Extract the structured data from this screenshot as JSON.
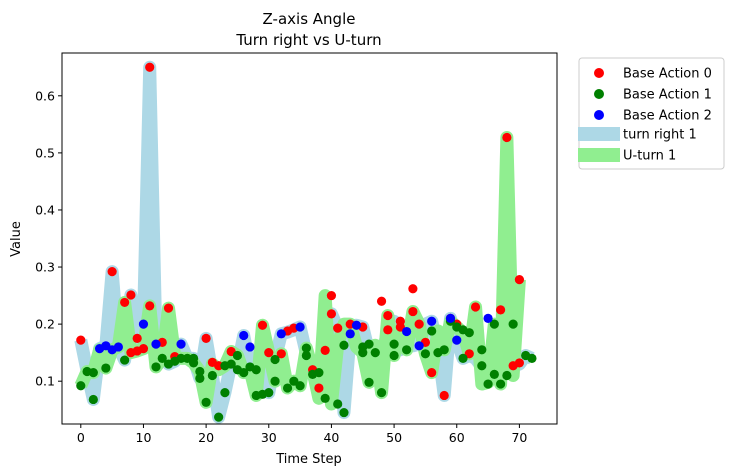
{
  "chart_data": {
    "type": "scatter",
    "title": "Z-axis Angle",
    "subtitle": "Turn right vs U-turn",
    "xlabel": "Time Step",
    "ylabel": "Value",
    "xlim": [
      -3,
      76
    ],
    "ylim": [
      0.025,
      0.675
    ],
    "x_ticks": [
      0,
      10,
      20,
      30,
      40,
      50,
      60,
      70
    ],
    "y_ticks": [
      0.1,
      0.2,
      0.3,
      0.4,
      0.5,
      0.6
    ],
    "y_tick_labels": [
      "0.1",
      "0.2",
      "0.3",
      "0.4",
      "0.5",
      "0.6"
    ],
    "grid": false,
    "legend_position": "outside-right-top",
    "colors": {
      "base_action_0": "#ff0000",
      "base_action_1": "#008000",
      "base_action_2": "#0000ff",
      "turn_right_band": "#add8e6",
      "uturn_band": "#90ee90"
    },
    "bands": [
      {
        "name": "turn right 1",
        "color": "#add8e6",
        "x": [
          0,
          1,
          2,
          3,
          4,
          5,
          6,
          7,
          8,
          9,
          10,
          11,
          12,
          13,
          14,
          15,
          16,
          17,
          18,
          19,
          20,
          21,
          22,
          23,
          24,
          25,
          26,
          27,
          28,
          29,
          30,
          31,
          32,
          33,
          34,
          35,
          36,
          37,
          38,
          39,
          40,
          41,
          42,
          43,
          44,
          45,
          46,
          47,
          48,
          49,
          50,
          51,
          52,
          53,
          54,
          55,
          56,
          57,
          58,
          59,
          60,
          61,
          62,
          63,
          64,
          65,
          66,
          67,
          68,
          69,
          70,
          71,
          72
        ],
        "y": [
          0.172,
          0.118,
          0.068,
          0.157,
          0.162,
          0.292,
          0.16,
          0.137,
          0.251,
          0.175,
          0.2,
          0.65,
          0.165,
          0.168,
          0.13,
          0.135,
          0.165,
          0.14,
          0.14,
          0.105,
          0.175,
          0.11,
          0.037,
          0.08,
          0.132,
          0.125,
          0.18,
          0.125,
          0.12,
          0.125,
          0.08,
          0.138,
          0.183,
          0.186,
          0.19,
          0.195,
          0.148,
          0.112,
          0.088,
          0.154,
          0.218,
          0.193,
          0.045,
          0.183,
          0.198,
          0.195,
          0.15,
          0.145,
          0.14,
          0.19,
          0.205,
          0.155,
          0.187,
          0.162,
          0.165,
          0.2,
          0.205,
          0.16,
          0.075,
          0.21,
          0.172,
          0.14,
          0.145,
          0.14,
          0.125,
          0.135,
          0.115,
          0.12,
          0.115,
          0.126,
          0.13,
          0.145,
          0.14
        ]
      },
      {
        "name": "U-turn 1",
        "color": "#90ee90",
        "x": [
          0,
          1,
          2,
          3,
          4,
          5,
          6,
          7,
          8,
          9,
          10,
          11,
          12,
          13,
          14,
          15,
          16,
          17,
          18,
          19,
          20,
          21,
          22,
          23,
          24,
          25,
          26,
          27,
          28,
          29,
          30,
          31,
          32,
          33,
          34,
          35,
          36,
          37,
          38,
          39,
          40,
          41,
          42,
          43,
          44,
          45,
          46,
          47,
          48,
          49,
          50,
          51,
          52,
          53,
          54,
          55,
          56,
          57,
          58,
          59,
          60,
          61,
          62,
          63,
          64,
          65,
          66,
          67,
          68,
          69,
          70
        ],
        "y": [
          0.092,
          0.117,
          0.115,
          0.155,
          0.123,
          0.155,
          0.16,
          0.238,
          0.15,
          0.153,
          0.157,
          0.232,
          0.125,
          0.14,
          0.228,
          0.143,
          0.14,
          0.14,
          0.132,
          0.117,
          0.063,
          0.13,
          0.12,
          0.127,
          0.152,
          0.145,
          0.115,
          0.12,
          0.075,
          0.198,
          0.15,
          0.1,
          0.148,
          0.088,
          0.1,
          0.092,
          0.158,
          0.12,
          0.07,
          0.25,
          0.06,
          0.163,
          0.2,
          0.2,
          0.16,
          0.15,
          0.098,
          0.163,
          0.08,
          0.215,
          0.145,
          0.19,
          0.155,
          0.222,
          0.2,
          0.148,
          0.115,
          0.188,
          0.155,
          0.205,
          0.195,
          0.185,
          0.148,
          0.23,
          0.095,
          0.098,
          0.2,
          0.095,
          0.527,
          0.11,
          0.278
        ]
      }
    ],
    "series": [
      {
        "name": "Base Action 0",
        "color": "#ff0000",
        "points": [
          [
            0,
            0.172
          ],
          [
            5,
            0.292
          ],
          [
            7,
            0.238
          ],
          [
            8,
            0.251
          ],
          [
            8,
            0.15
          ],
          [
            9,
            0.153
          ],
          [
            9,
            0.175
          ],
          [
            10,
            0.157
          ],
          [
            11,
            0.65
          ],
          [
            11,
            0.232
          ],
          [
            13,
            0.168
          ],
          [
            14,
            0.228
          ],
          [
            15,
            0.143
          ],
          [
            20,
            0.175
          ],
          [
            21,
            0.133
          ],
          [
            22,
            0.127
          ],
          [
            24,
            0.152
          ],
          [
            29,
            0.198
          ],
          [
            30,
            0.15
          ],
          [
            32,
            0.148
          ],
          [
            33,
            0.188
          ],
          [
            34,
            0.193
          ],
          [
            37,
            0.12
          ],
          [
            38,
            0.088
          ],
          [
            39,
            0.154
          ],
          [
            40,
            0.25
          ],
          [
            40,
            0.218
          ],
          [
            41,
            0.193
          ],
          [
            43,
            0.2
          ],
          [
            45,
            0.195
          ],
          [
            48,
            0.24
          ],
          [
            49,
            0.215
          ],
          [
            49,
            0.19
          ],
          [
            51,
            0.205
          ],
          [
            51,
            0.195
          ],
          [
            53,
            0.262
          ],
          [
            53,
            0.222
          ],
          [
            54,
            0.2
          ],
          [
            55,
            0.168
          ],
          [
            56,
            0.115
          ],
          [
            58,
            0.075
          ],
          [
            59,
            0.21
          ],
          [
            60,
            0.2
          ],
          [
            62,
            0.148
          ],
          [
            63,
            0.23
          ],
          [
            67,
            0.225
          ],
          [
            68,
            0.527
          ],
          [
            69,
            0.127
          ],
          [
            70,
            0.132
          ],
          [
            70,
            0.278
          ]
        ]
      },
      {
        "name": "Base Action 1",
        "color": "#008000",
        "points": [
          [
            0,
            0.092
          ],
          [
            1,
            0.117
          ],
          [
            2,
            0.068
          ],
          [
            2,
            0.115
          ],
          [
            4,
            0.123
          ],
          [
            7,
            0.137
          ],
          [
            12,
            0.125
          ],
          [
            13,
            0.14
          ],
          [
            14,
            0.13
          ],
          [
            15,
            0.135
          ],
          [
            16,
            0.14
          ],
          [
            17,
            0.14
          ],
          [
            18,
            0.14
          ],
          [
            18,
            0.132
          ],
          [
            19,
            0.117
          ],
          [
            19,
            0.105
          ],
          [
            20,
            0.063
          ],
          [
            21,
            0.11
          ],
          [
            22,
            0.037
          ],
          [
            23,
            0.08
          ],
          [
            23,
            0.127
          ],
          [
            24,
            0.13
          ],
          [
            25,
            0.145
          ],
          [
            25,
            0.12
          ],
          [
            26,
            0.115
          ],
          [
            27,
            0.125
          ],
          [
            28,
            0.12
          ],
          [
            28,
            0.075
          ],
          [
            29,
            0.077
          ],
          [
            30,
            0.08
          ],
          [
            31,
            0.138
          ],
          [
            31,
            0.1
          ],
          [
            33,
            0.088
          ],
          [
            34,
            0.1
          ],
          [
            35,
            0.092
          ],
          [
            36,
            0.158
          ],
          [
            36,
            0.145
          ],
          [
            37,
            0.112
          ],
          [
            38,
            0.115
          ],
          [
            39,
            0.07
          ],
          [
            41,
            0.06
          ],
          [
            42,
            0.045
          ],
          [
            42,
            0.163
          ],
          [
            45,
            0.16
          ],
          [
            45,
            0.15
          ],
          [
            46,
            0.098
          ],
          [
            46,
            0.165
          ],
          [
            47,
            0.15
          ],
          [
            48,
            0.08
          ],
          [
            50,
            0.145
          ],
          [
            50,
            0.165
          ],
          [
            52,
            0.155
          ],
          [
            55,
            0.148
          ],
          [
            56,
            0.188
          ],
          [
            57,
            0.15
          ],
          [
            58,
            0.155
          ],
          [
            59,
            0.205
          ],
          [
            60,
            0.195
          ],
          [
            61,
            0.14
          ],
          [
            61,
            0.19
          ],
          [
            62,
            0.185
          ],
          [
            64,
            0.155
          ],
          [
            64,
            0.127
          ],
          [
            65,
            0.095
          ],
          [
            66,
            0.2
          ],
          [
            66,
            0.112
          ],
          [
            67,
            0.095
          ],
          [
            68,
            0.11
          ],
          [
            69,
            0.2
          ],
          [
            71,
            0.145
          ],
          [
            72,
            0.14
          ]
        ]
      },
      {
        "name": "Base Action 2",
        "color": "#0000ff",
        "points": [
          [
            3,
            0.157
          ],
          [
            4,
            0.162
          ],
          [
            5,
            0.155
          ],
          [
            6,
            0.16
          ],
          [
            10,
            0.2
          ],
          [
            12,
            0.165
          ],
          [
            16,
            0.165
          ],
          [
            26,
            0.18
          ],
          [
            27,
            0.16
          ],
          [
            32,
            0.183
          ],
          [
            35,
            0.195
          ],
          [
            43,
            0.183
          ],
          [
            44,
            0.198
          ],
          [
            52,
            0.187
          ],
          [
            54,
            0.162
          ],
          [
            56,
            0.205
          ],
          [
            59,
            0.21
          ],
          [
            60,
            0.172
          ],
          [
            65,
            0.21
          ]
        ]
      }
    ]
  }
}
